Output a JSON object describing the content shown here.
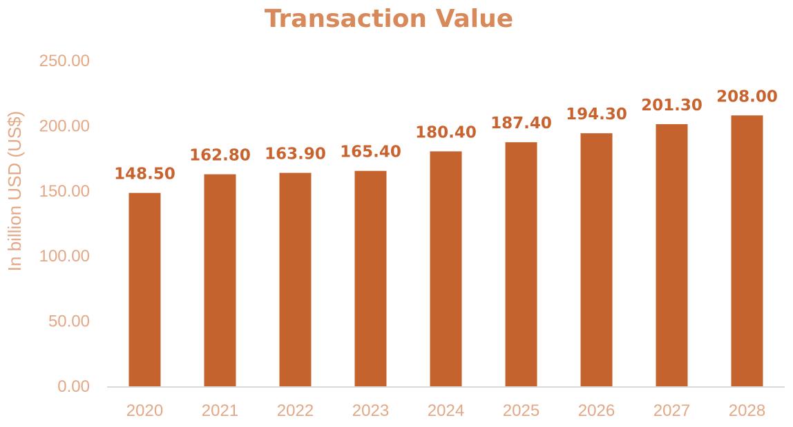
{
  "colors": {
    "bar": "#C4632E",
    "title": "#D8895A",
    "axis_text": "#E3A886",
    "data_label": "#C8632F"
  },
  "chart_data": {
    "type": "bar",
    "title": "Transaction Value",
    "xlabel": "",
    "ylabel": "In billion USD (US$)",
    "categories": [
      "2020",
      "2021",
      "2022",
      "2023",
      "2024",
      "2025",
      "2026",
      "2027",
      "2028"
    ],
    "values": [
      148.5,
      162.8,
      163.9,
      165.4,
      180.4,
      187.4,
      194.3,
      201.3,
      208.0
    ],
    "value_labels": [
      "148.50",
      "162.80",
      "163.90",
      "165.40",
      "180.40",
      "187.40",
      "194.30",
      "201.30",
      "208.00"
    ],
    "ylim": [
      0,
      250
    ],
    "y_ticks": [
      "0.00",
      "50.00",
      "100.00",
      "150.00",
      "200.00",
      "250.00"
    ],
    "grid": false,
    "legend": "none"
  }
}
